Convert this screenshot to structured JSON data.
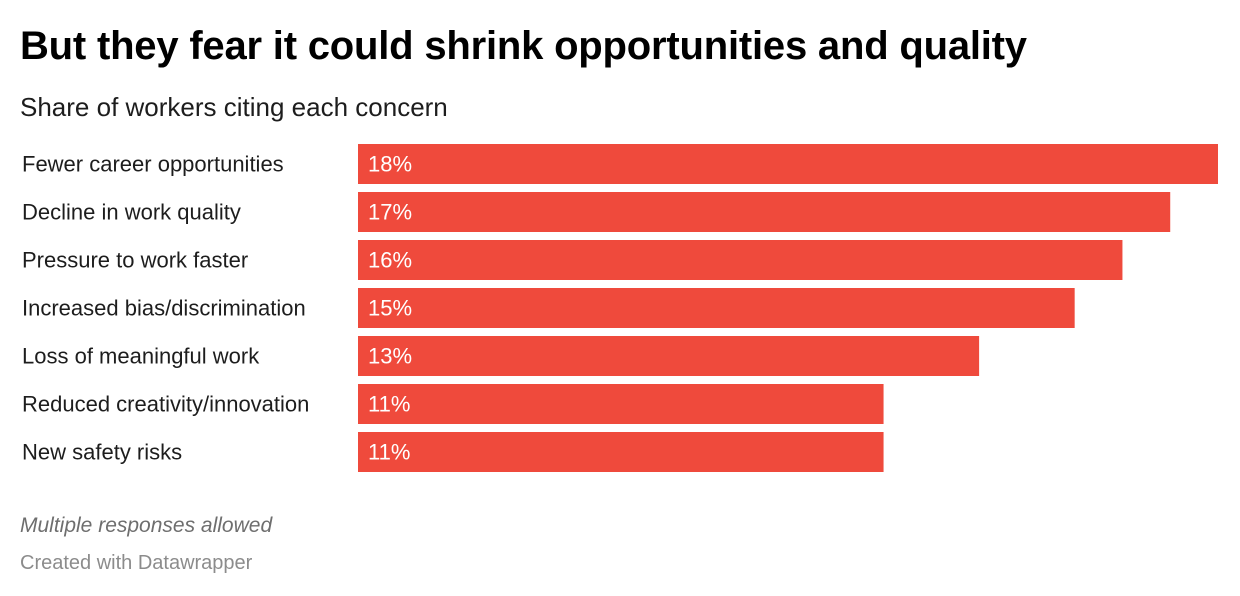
{
  "header": {
    "title": "But they fear it could shrink opportunities and quality",
    "subtitle": "Share of workers citing each concern"
  },
  "footer": {
    "note": "Multiple responses allowed",
    "credit": "Created with Datawrapper"
  },
  "colors": {
    "bar": "#ef4a3c",
    "label": "#1d1d1d",
    "value_text": "#ffffff"
  },
  "chart_data": {
    "type": "bar",
    "orientation": "horizontal",
    "title": "But they fear it could shrink opportunities and quality",
    "subtitle": "Share of workers citing each concern",
    "categories": [
      "Fewer career opportunities",
      "Decline in work quality",
      "Pressure to work faster",
      "Increased bias/discrimination",
      "Loss of meaningful work",
      "Reduced creativity/innovation",
      "New safety risks"
    ],
    "values": [
      18,
      17,
      16,
      15,
      13,
      11,
      11
    ],
    "value_labels": [
      "18%",
      "17%",
      "16%",
      "15%",
      "13%",
      "11%",
      "11%"
    ],
    "unit": "%",
    "xlim": [
      0,
      18
    ],
    "grid": false,
    "legend": "none"
  }
}
